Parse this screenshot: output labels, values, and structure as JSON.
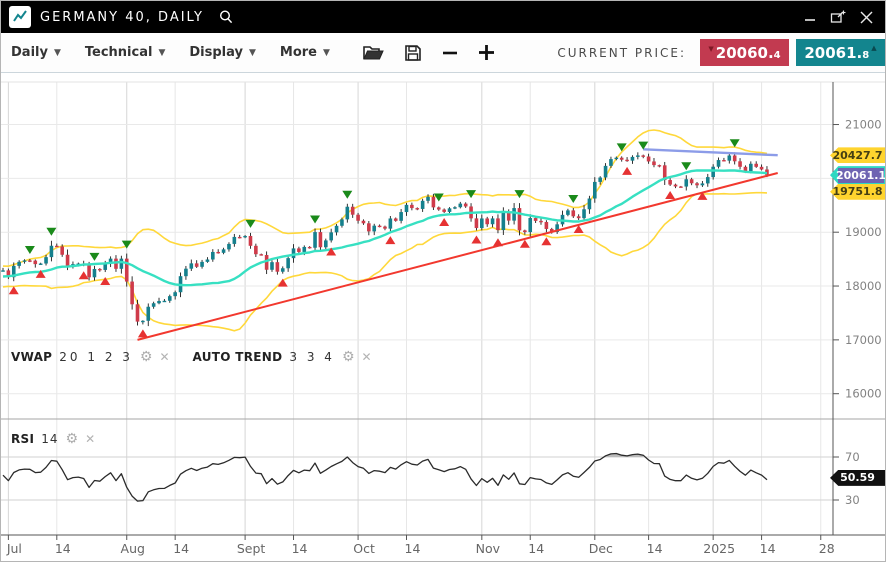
{
  "title_bar": {
    "title": "GERMANY 40, DAILY"
  },
  "toolbar": {
    "menus": [
      {
        "label": "Daily"
      },
      {
        "label": "Technical"
      },
      {
        "label": "Display"
      },
      {
        "label": "More"
      }
    ],
    "icons": [
      "open-chart",
      "save-chart",
      "zoom-out",
      "zoom-in"
    ],
    "current_price_label": "CURRENT PRICE:",
    "bid": {
      "int": "20060.",
      "dec": "4",
      "direction": "down"
    },
    "ask": {
      "int": "20061.",
      "dec": "8",
      "direction": "up"
    }
  },
  "legend": {
    "vwap": {
      "name": "VWAP",
      "params": "20 1 2 3"
    },
    "autotrend": {
      "name": "AUTO TREND",
      "params": "3 3 4"
    },
    "rsi": {
      "name": "RSI",
      "params": "14"
    }
  },
  "chart_data": {
    "type": "candlestick",
    "title": "GERMANY 40, DAILY",
    "ylim": [
      15530,
      21790
    ],
    "y_gridlines": [
      16000,
      17000,
      18000,
      19000,
      20000,
      21000
    ],
    "y_ticks": [
      "21000",
      "19000",
      "18000",
      "17000",
      "16000"
    ],
    "x_ticks": [
      {
        "label": "Jul",
        "i": 1,
        "major": true
      },
      {
        "label": "14",
        "i": 10
      },
      {
        "label": "Aug",
        "i": 23,
        "major": true
      },
      {
        "label": "14",
        "i": 32
      },
      {
        "label": "Sept",
        "i": 45,
        "major": true
      },
      {
        "label": "14",
        "i": 54
      },
      {
        "label": "Oct",
        "i": 66,
        "major": true
      },
      {
        "label": "14",
        "i": 75
      },
      {
        "label": "Nov",
        "i": 89,
        "major": true
      },
      {
        "label": "14",
        "i": 98
      },
      {
        "label": "Dec",
        "i": 110,
        "major": true
      },
      {
        "label": "14",
        "i": 120
      },
      {
        "label": "2025",
        "i": 132,
        "major": true
      },
      {
        "label": "14",
        "i": 141
      },
      {
        "label": "28",
        "i": 152
      }
    ],
    "warmup_closes": [
      18235,
      18067,
      18131,
      18002,
      18068,
      18163,
      18254,
      18325,
      18177,
      18265,
      18011,
      18266,
      18306,
      18210,
      18164,
      18075,
      18111,
      18155,
      18210,
      18290
    ],
    "closes": [
      18291,
      18164,
      18374,
      18450,
      18476,
      18472,
      18407,
      18418,
      18537,
      18748,
      18735,
      18581,
      18354,
      18407,
      18417,
      18387,
      18162,
      18317,
      18299,
      18411,
      18509,
      18320,
      18509,
      18083,
      17661,
      17339,
      17354,
      17615,
      17680,
      17722,
      17726,
      17812,
      17885,
      18183,
      18322,
      18421,
      18357,
      18449,
      18493,
      18633,
      18617,
      18681,
      18782,
      18912,
      18907,
      18930,
      18747,
      18591,
      18576,
      18302,
      18443,
      18266,
      18330,
      18518,
      18699,
      18633,
      18726,
      18711,
      19002,
      18720,
      18847,
      18997,
      19119,
      19238,
      19473,
      19325,
      19213,
      19165,
      19015,
      19121,
      19104,
      19066,
      19255,
      19211,
      19374,
      19508,
      19448,
      19432,
      19583,
      19657,
      19461,
      19421,
      19377,
      19443,
      19464,
      19531,
      19478,
      19257,
      19077,
      19255,
      19148,
      19256,
      19039,
      19362,
      19215,
      19448,
      19033,
      19003,
      19263,
      19210,
      19189,
      19060,
      19004,
      19146,
      19322,
      19405,
      19295,
      19261,
      19426,
      19626,
      19934,
      20016,
      20232,
      20358,
      20384,
      20346,
      20329,
      20399,
      20426,
      20406,
      20314,
      20246,
      20242,
      19969,
      19884,
      19849,
      19848,
      19984,
      19909,
      19871,
      19906,
      20024,
      20216,
      20340,
      20329,
      20425,
      20317,
      20215,
      20133,
      20271,
      20214,
      20165,
      20061
    ],
    "indicators": {
      "vwap_period": 20,
      "band_mult": 2,
      "rsi_period": 14
    },
    "trendline": {
      "start": {
        "i": 25,
        "price": 17000
      },
      "end": {
        "i": 144,
        "price": 20100
      }
    },
    "resistance_line": {
      "start": {
        "i": 119,
        "price": 20540
      },
      "end": {
        "i": 144,
        "price": 20430
      }
    },
    "markers": {
      "sell_indices": [
        5,
        9,
        17,
        23,
        46,
        58,
        64,
        81,
        87,
        96,
        106,
        115,
        119,
        127,
        136
      ],
      "buy_indices": [
        2,
        7,
        15,
        19,
        26,
        52,
        61,
        72,
        82,
        88,
        92,
        97,
        101,
        107,
        116,
        124,
        130
      ]
    },
    "price_labels": [
      {
        "value": "20427.7",
        "price": 20427.7,
        "style": "band"
      },
      {
        "value": "20061.1",
        "price": 20061.1,
        "style": "price"
      },
      {
        "value": "19751.8",
        "price": 19751.8,
        "style": "band"
      }
    ],
    "rsi": {
      "levels": [
        "70",
        "30"
      ],
      "last_value": "50.59"
    },
    "colors": {
      "up": "#15808d",
      "down": "#cf3b4a",
      "wick": "#1c1c1c",
      "vwap": "#37e0c2",
      "band": "#ffd83b",
      "trend": "#f2382e",
      "resistance": "#8c9ce8",
      "sell_marker": "#1a8a1a",
      "buy_marker": "#e63232",
      "band_label_bg": "#ffd42e",
      "band_label_text": "#453f12",
      "price_label_bg": "#6e64b2",
      "price_label_edge": "#2fd8c2",
      "rsi_line": "#2b2b2b",
      "rsi_fill": "#b5b5b5",
      "rsi_label_bg": "#111111"
    }
  }
}
